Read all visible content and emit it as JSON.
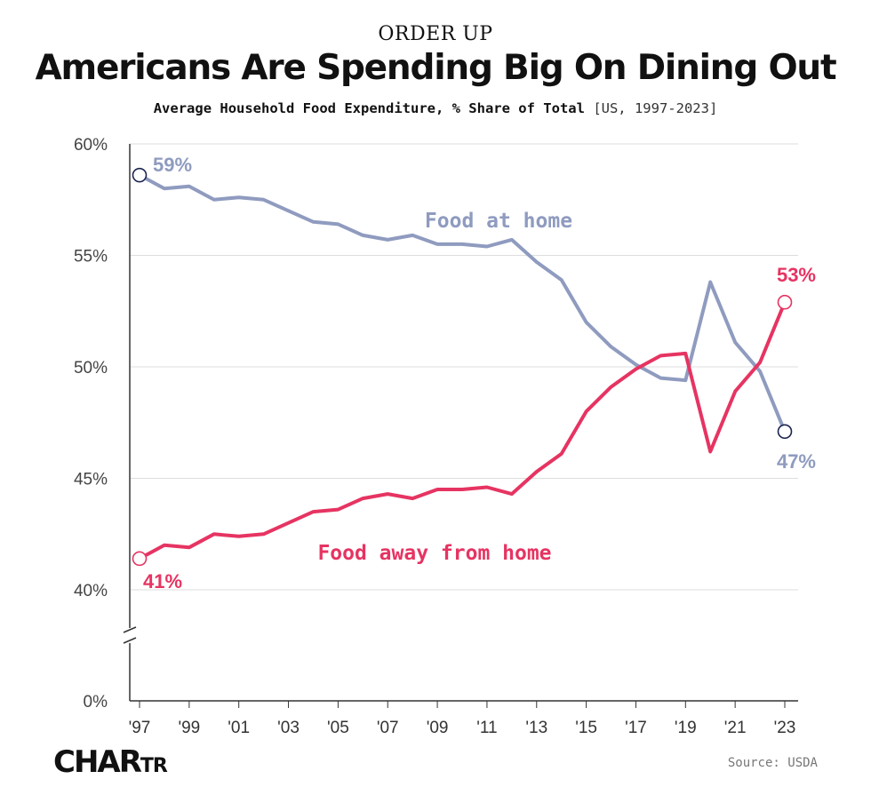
{
  "kicker": "ORDER UP",
  "title": "Americans Are Spending Big On Dining Out",
  "subtitle": "Average Household Food Expenditure, % Share of Total",
  "subtitle_scope": "[US, 1997-2023]",
  "logo": {
    "main": "CHAR",
    "small": "TR"
  },
  "source": "Source: USDA",
  "colors": {
    "home": "#8f9bbf",
    "away": "#e63462",
    "marker_home_edge": "#1b2450",
    "grid": "#dddddd",
    "axis": "#333333"
  },
  "chart_data": {
    "type": "line",
    "x": [
      1997,
      1998,
      1999,
      2000,
      2001,
      2002,
      2003,
      2004,
      2005,
      2006,
      2007,
      2008,
      2009,
      2010,
      2011,
      2012,
      2013,
      2014,
      2015,
      2016,
      2017,
      2018,
      2019,
      2020,
      2021,
      2022,
      2023
    ],
    "series": [
      {
        "name": "Food at home",
        "values": [
          58.6,
          58.0,
          58.1,
          57.5,
          57.6,
          57.5,
          57.0,
          56.5,
          56.4,
          55.9,
          55.7,
          55.9,
          55.5,
          55.5,
          55.4,
          55.7,
          54.7,
          53.9,
          52.0,
          50.9,
          50.1,
          49.5,
          49.4,
          53.8,
          51.1,
          49.8,
          47.1
        ]
      },
      {
        "name": "Food away from home",
        "values": [
          41.4,
          42.0,
          41.9,
          42.5,
          42.4,
          42.5,
          43.0,
          43.5,
          43.6,
          44.1,
          44.3,
          44.1,
          44.5,
          44.5,
          44.6,
          44.3,
          45.3,
          46.1,
          48.0,
          49.1,
          49.9,
          50.5,
          50.6,
          46.2,
          48.9,
          50.2,
          52.9
        ]
      }
    ],
    "yticks": [
      "60%",
      "55%",
      "50%",
      "45%",
      "40%",
      "0%"
    ],
    "ytick_values": [
      60,
      55,
      50,
      45,
      40,
      0
    ],
    "xticks": [
      "'97",
      "'99",
      "'01",
      "'03",
      "'05",
      "'07",
      "'09",
      "'11",
      "'13",
      "'15",
      "'17",
      "'19",
      "'21",
      "'23"
    ],
    "xtick_years": [
      1997,
      1999,
      2001,
      2003,
      2005,
      2007,
      2009,
      2011,
      2013,
      2015,
      2017,
      2019,
      2021,
      2023
    ],
    "ylim_main": [
      40,
      60
    ],
    "axis_break": true,
    "annotations": {
      "home_start": "59%",
      "home_end": "47%",
      "away_start": "41%",
      "away_end": "53%"
    },
    "grid": true
  }
}
